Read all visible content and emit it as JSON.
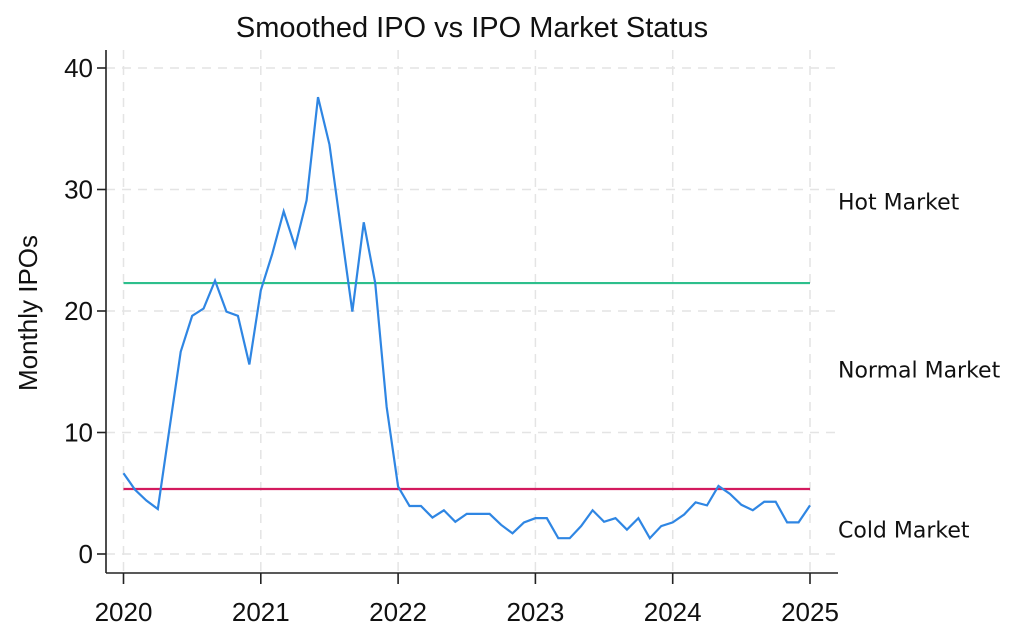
{
  "chart_data": {
    "type": "line",
    "title": "Smoothed IPO vs IPO Market Status",
    "xlabel": "",
    "ylabel": "Monthly IPOs",
    "xlim": [
      2020,
      2025
    ],
    "ylim": [
      -1.5,
      41.5
    ],
    "x_ticks": [
      2020,
      2021,
      2022,
      2023,
      2024,
      2025
    ],
    "x_tick_labels": [
      "2020",
      "2021",
      "2022",
      "2023",
      "2024",
      "2025"
    ],
    "y_ticks": [
      0,
      10,
      20,
      30,
      40
    ],
    "y_tick_labels": [
      "0",
      "10",
      "20",
      "30",
      "40"
    ],
    "grid": true,
    "x_start": 2020,
    "x_step_months": 1,
    "series": [
      {
        "name": "Smoothed IPO",
        "color": "#2f86e3",
        "values": [
          6.65,
          5.3,
          4.4,
          3.7,
          10.2,
          16.65,
          19.6,
          20.2,
          22.5,
          19.95,
          19.6,
          15.6,
          21.7,
          24.7,
          28.2,
          25.3,
          29.1,
          37.6,
          33.7,
          26.8,
          19.95,
          27.3,
          22.3,
          12.1,
          5.55,
          3.95,
          3.95,
          3.0,
          3.6,
          2.65,
          3.3,
          3.3,
          3.3,
          2.4,
          1.7,
          2.6,
          2.95,
          2.95,
          1.3,
          1.3,
          2.3,
          3.6,
          2.65,
          2.95,
          2.0,
          2.95,
          1.3,
          2.3,
          2.6,
          3.25,
          4.25,
          4.0,
          5.6,
          4.95,
          4.05,
          3.6,
          4.3,
          4.3,
          2.6,
          2.6,
          4.0
        ]
      }
    ],
    "thresholds": [
      {
        "name": "Hot threshold",
        "value": 22.3,
        "color": "#2dbf8c"
      },
      {
        "name": "Cold threshold",
        "value": 5.35,
        "color": "#d31a5e"
      }
    ],
    "annotations": [
      {
        "text": "Hot Market",
        "y": 29.0
      },
      {
        "text": "Normal Market",
        "y": 15.2
      },
      {
        "text": "Cold Market",
        "y": 2.0
      }
    ]
  }
}
